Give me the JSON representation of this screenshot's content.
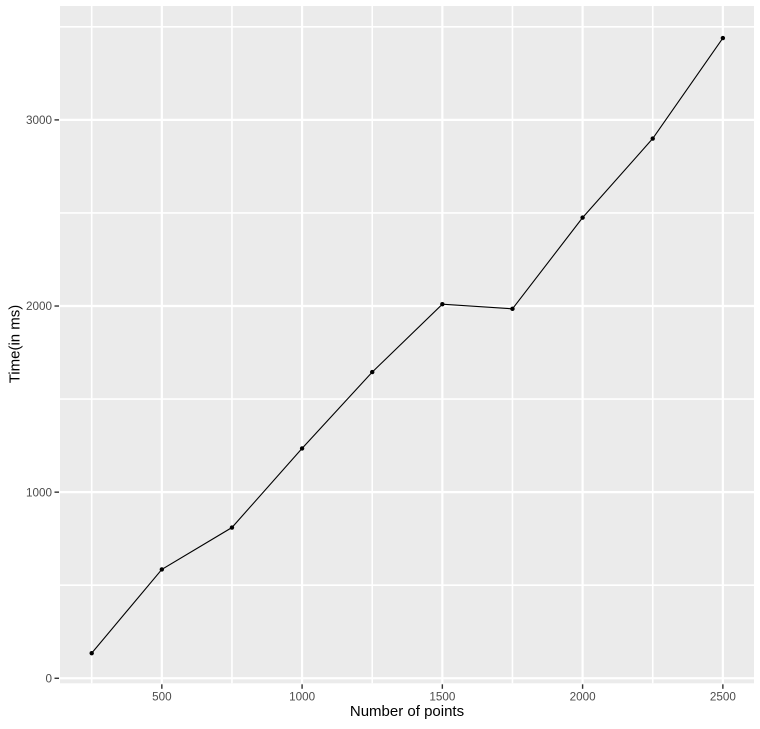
{
  "chart_data": {
    "type": "line",
    "xlabel": "Number of points",
    "ylabel": "Time(in ms)",
    "x": [
      250,
      500,
      750,
      1000,
      1250,
      1500,
      1750,
      2000,
      2250,
      2500
    ],
    "y": [
      135,
      585,
      810,
      1235,
      1645,
      2010,
      1985,
      2475,
      2900,
      3440
    ],
    "x_major_ticks": [
      500,
      1000,
      1500,
      2000,
      2500
    ],
    "x_minor_ticks": [
      250,
      750,
      1250,
      1750,
      2250
    ],
    "y_major_ticks": [
      0,
      1000,
      2000,
      3000
    ],
    "y_minor_ticks": [
      500,
      1500,
      2500,
      3500
    ],
    "xlim": [
      137,
      2611
    ],
    "ylim": [
      -27,
      3612
    ],
    "grid": "on",
    "legend": "none",
    "style": {
      "outer_bg": "#FFFFFF",
      "panel_bg": "#EBEBEB",
      "grid_color": "#FFFFFF",
      "line_color": "#000000",
      "point_color": "#000000",
      "tick_label_color": "#4D4D4D",
      "tick_mark_color": "#333333",
      "axis_title_color": "#000000"
    }
  }
}
